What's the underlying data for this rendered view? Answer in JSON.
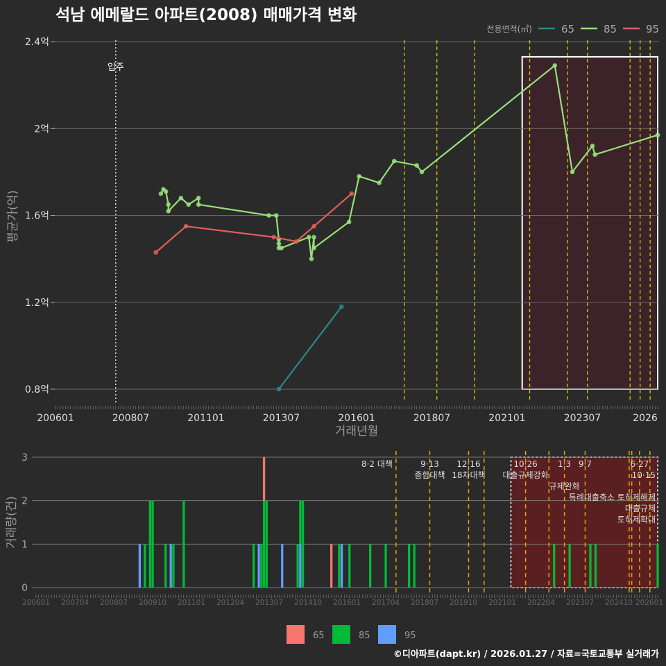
{
  "title": "석남 에메랄드 아파트(2008) 매매가격 변화",
  "footer": "©디아파트(dapt.kr) / 2026.01.27 / 자료=국토교통부 실거래가",
  "colors": {
    "bg": "#2a2a2b",
    "t65": "#2a8a8a",
    "t85": "#98e07a",
    "t95": "#e0605a",
    "b65": "#f8766d",
    "b85": "#00ba38",
    "b95": "#619cff",
    "policy": "#d9c400",
    "policyBottom": "#e8a000"
  },
  "chart_data": [
    {
      "type": "line",
      "title": "석남 에메랄드 아파트(2008) 매매가격 변화",
      "xlabel": "거래년월",
      "ylabel": "평균가(억)",
      "ylim": [
        0.8,
        2.4
      ],
      "yticks": [
        {
          "v": 0.8,
          "label": "0.8억"
        },
        {
          "v": 1.2,
          "label": "1.2억"
        },
        {
          "v": 1.6,
          "label": "1.6억"
        },
        {
          "v": 2.0,
          "label": "2억"
        },
        {
          "v": 2.4,
          "label": "2.4억"
        }
      ],
      "xticks": [
        "200601",
        "200807",
        "201101",
        "201307",
        "201601",
        "201807",
        "202101",
        "202307",
        "2026"
      ],
      "xrange": [
        "2006.01",
        "2026.01"
      ],
      "legend_title": "전용면적(㎡)",
      "legend_position": "top-right",
      "move_in": {
        "date": "2008.01",
        "label": "입주"
      },
      "highlight": {
        "from": "2021.07",
        "to": "2026.01",
        "ymin": 0.8,
        "ymax": 2.33
      },
      "policy_dates": [
        "2017.08",
        "2018.09",
        "2019.12",
        "2021.10",
        "2023.01",
        "2023.09",
        "2025.02",
        "2025.06",
        "2025.10"
      ],
      "series": [
        {
          "name": "65",
          "points": [
            [
              "2013.06",
              0.8
            ],
            [
              "2015.07",
              1.18
            ]
          ]
        },
        {
          "name": "85",
          "points": [
            [
              "2009.07",
              1.7
            ],
            [
              "2009.08",
              1.72
            ],
            [
              "2009.09",
              1.71
            ],
            [
              "2009.10",
              1.65
            ],
            [
              "2009.10",
              1.62
            ],
            [
              "2010.03",
              1.68
            ],
            [
              "2010.06",
              1.65
            ],
            [
              "2010.10",
              1.68
            ],
            [
              "2010.10",
              1.65
            ],
            [
              "2013.02",
              1.6
            ],
            [
              "2013.05",
              1.6
            ],
            [
              "2013.06",
              1.49
            ],
            [
              "2013.06",
              1.47
            ],
            [
              "2013.06",
              1.45
            ],
            [
              "2013.07",
              1.45
            ],
            [
              "2014.06",
              1.5
            ],
            [
              "2014.07",
              1.4
            ],
            [
              "2014.08",
              1.5
            ],
            [
              "2014.08",
              1.45
            ],
            [
              "2015.10",
              1.57
            ],
            [
              "2016.02",
              1.78
            ],
            [
              "2016.10",
              1.75
            ],
            [
              "2017.04",
              1.85
            ],
            [
              "2018.01",
              1.83
            ],
            [
              "2018.03",
              1.8
            ],
            [
              "2022.08",
              2.29
            ],
            [
              "2023.03",
              1.8
            ],
            [
              "2023.11",
              1.92
            ],
            [
              "2023.12",
              1.88
            ],
            [
              "2026.01",
              1.97
            ]
          ]
        },
        {
          "name": "95",
          "points": [
            [
              "2009.05",
              1.43
            ],
            [
              "2010.05",
              1.55
            ],
            [
              "2013.04",
              1.5
            ],
            [
              "2014.01",
              1.48
            ],
            [
              "2014.08",
              1.55
            ],
            [
              "2015.11",
              1.7
            ]
          ]
        }
      ]
    },
    {
      "type": "bar",
      "ylabel": "거래량(건)",
      "ylim": [
        0,
        3
      ],
      "yticks": [
        "0",
        "1",
        "2",
        "3"
      ],
      "xticks": [
        "200601",
        "200704",
        "200807",
        "200910",
        "201101",
        "201204",
        "201307",
        "201410",
        "201601",
        "201704",
        "201807",
        "201910",
        "202101",
        "202204",
        "202307",
        "202410",
        "202601"
      ],
      "legend": [
        "65",
        "85",
        "95"
      ],
      "legend_position": "bottom",
      "highlight": {
        "from": "2021.07",
        "to": "2026.01"
      },
      "bars": [
        {
          "date": "2009.05",
          "c95": 1
        },
        {
          "date": "2009.07",
          "c85": 1
        },
        {
          "date": "2009.09",
          "c85": 2
        },
        {
          "date": "2009.10",
          "c85": 2
        },
        {
          "date": "2010.03",
          "c85": 1
        },
        {
          "date": "2010.05",
          "c95": 1
        },
        {
          "date": "2010.06",
          "c85": 1
        },
        {
          "date": "2010.10",
          "c85": 2
        },
        {
          "date": "2013.01",
          "c85": 1
        },
        {
          "date": "2013.03",
          "c95": 1
        },
        {
          "date": "2013.04",
          "c85": 1
        },
        {
          "date": "2013.05",
          "c85": 2,
          "c65": 1
        },
        {
          "date": "2013.06",
          "c85": 2
        },
        {
          "date": "2013.12",
          "c95": 1
        },
        {
          "date": "2014.06",
          "c85": 1
        },
        {
          "date": "2014.07",
          "c95": 1,
          "c85": 1
        },
        {
          "date": "2014.08",
          "c85": 2
        },
        {
          "date": "2015.07",
          "c65": 1
        },
        {
          "date": "2015.10",
          "c85": 1
        },
        {
          "date": "2015.11",
          "c95": 1
        },
        {
          "date": "2016.02",
          "c85": 1
        },
        {
          "date": "2016.10",
          "c85": 1
        },
        {
          "date": "2017.04",
          "c85": 1
        },
        {
          "date": "2018.01",
          "c85": 1
        },
        {
          "date": "2018.03",
          "c85": 1
        },
        {
          "date": "2022.09",
          "c85": 1
        },
        {
          "date": "2023.03",
          "c85": 1
        },
        {
          "date": "2023.11",
          "c85": 1
        },
        {
          "date": "2024.01",
          "c85": 1
        },
        {
          "date": "2026.01",
          "c85": 1
        }
      ],
      "policies": [
        {
          "date": "2017.08",
          "label1": "8·2 대책",
          "label2": ""
        },
        {
          "date": "2018.09",
          "label1": "9·13",
          "label2": "종합대책"
        },
        {
          "date": "2019.12",
          "label1": "12·16",
          "label2": "18차대책"
        },
        {
          "date": "2020.06",
          "label1": "",
          "label2": ""
        },
        {
          "date": "2021.10",
          "label1": "10·26",
          "label2": "대출규제강화"
        },
        {
          "date": "2022.07",
          "label1": "",
          "label2": ""
        },
        {
          "date": "2023.01",
          "label1": "1·3",
          "label2": "규제완화"
        },
        {
          "date": "2023.09",
          "label1": "9·7",
          "label2": "특례대출축소 토허제해제"
        },
        {
          "date": "2025.02",
          "label1": "",
          "label2": ""
        },
        {
          "date": "2025.03",
          "label1": "",
          "label2": ""
        },
        {
          "date": "2025.06",
          "label1": "6·27",
          "label2": "대출규제"
        },
        {
          "date": "2025.10",
          "label1": "10·15",
          "label2": "토허제확대"
        }
      ]
    }
  ]
}
